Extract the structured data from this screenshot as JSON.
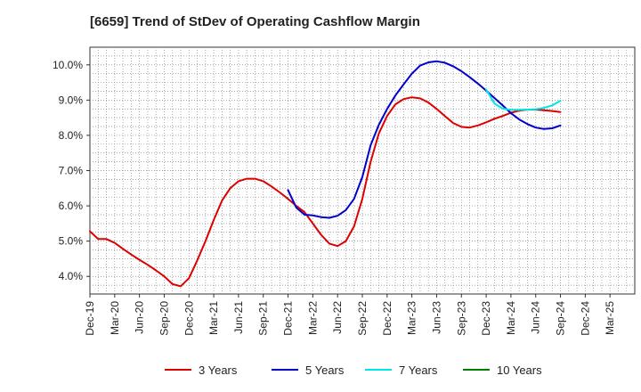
{
  "title": "[6659]  Trend of StDev of Operating Cashflow Margin",
  "chart_data": {
    "type": "line",
    "title": "[6659]  Trend of StDev of Operating Cashflow Margin",
    "xlabel": "",
    "ylabel": "",
    "x_tick_labels": [
      "Dec-19",
      "Mar-20",
      "Jun-20",
      "Sep-20",
      "Dec-20",
      "Mar-21",
      "Jun-21",
      "Sep-21",
      "Dec-21",
      "Mar-22",
      "Jun-22",
      "Sep-22",
      "Dec-22",
      "Mar-23",
      "Jun-23",
      "Sep-23",
      "Dec-23",
      "Mar-24",
      "Jun-24",
      "Sep-24",
      "Dec-24",
      "Mar-25"
    ],
    "y_tick_labels": [
      "4.0%",
      "5.0%",
      "6.0%",
      "7.0%",
      "8.0%",
      "9.0%",
      "10.0%"
    ],
    "ylim": [
      3.5,
      10.5
    ],
    "grid": true,
    "legend_position": "bottom",
    "series": [
      {
        "name": "3 Years",
        "color": "#dd0000",
        "points": [
          [
            "Dec-19",
            5.28
          ],
          [
            "Jan-20",
            5.06
          ],
          [
            "Feb-20",
            5.06
          ],
          [
            "Mar-20",
            4.95
          ],
          [
            "Apr-20",
            4.78
          ],
          [
            "May-20",
            4.62
          ],
          [
            "Jun-20",
            4.47
          ],
          [
            "Jul-20",
            4.33
          ],
          [
            "Aug-20",
            4.17
          ],
          [
            "Sep-20",
            4.0
          ],
          [
            "Oct-20",
            3.78
          ],
          [
            "Nov-20",
            3.72
          ],
          [
            "Dec-20",
            3.95
          ],
          [
            "Jan-21",
            4.45
          ],
          [
            "Feb-21",
            5.0
          ],
          [
            "Mar-21",
            5.6
          ],
          [
            "Apr-21",
            6.15
          ],
          [
            "May-21",
            6.5
          ],
          [
            "Jun-21",
            6.7
          ],
          [
            "Jul-21",
            6.77
          ],
          [
            "Aug-21",
            6.77
          ],
          [
            "Sep-21",
            6.7
          ],
          [
            "Oct-21",
            6.55
          ],
          [
            "Nov-21",
            6.38
          ],
          [
            "Dec-21",
            6.2
          ],
          [
            "Jan-22",
            6.0
          ],
          [
            "Feb-22",
            5.82
          ],
          [
            "Mar-22",
            5.5
          ],
          [
            "Apr-22",
            5.18
          ],
          [
            "May-22",
            4.93
          ],
          [
            "Jun-22",
            4.86
          ],
          [
            "Jul-22",
            5.0
          ],
          [
            "Aug-22",
            5.42
          ],
          [
            "Sep-22",
            6.2
          ],
          [
            "Oct-22",
            7.25
          ],
          [
            "Nov-22",
            8.05
          ],
          [
            "Dec-22",
            8.55
          ],
          [
            "Jan-23",
            8.88
          ],
          [
            "Feb-23",
            9.03
          ],
          [
            "Mar-23",
            9.08
          ],
          [
            "Apr-23",
            9.05
          ],
          [
            "May-23",
            8.93
          ],
          [
            "Jun-23",
            8.75
          ],
          [
            "Jul-23",
            8.55
          ],
          [
            "Aug-23",
            8.35
          ],
          [
            "Sep-23",
            8.24
          ],
          [
            "Oct-23",
            8.22
          ],
          [
            "Nov-23",
            8.28
          ],
          [
            "Dec-23",
            8.37
          ],
          [
            "Jan-24",
            8.47
          ],
          [
            "Feb-24",
            8.55
          ],
          [
            "Mar-24",
            8.64
          ],
          [
            "Apr-24",
            8.7
          ],
          [
            "May-24",
            8.73
          ],
          [
            "Jun-24",
            8.73
          ],
          [
            "Jul-24",
            8.71
          ],
          [
            "Aug-24",
            8.69
          ],
          [
            "Sep-24",
            8.66
          ]
        ]
      },
      {
        "name": "5 Years",
        "color": "#0000cc",
        "points": [
          [
            "Dec-21",
            6.45
          ],
          [
            "Jan-22",
            5.95
          ],
          [
            "Feb-22",
            5.75
          ],
          [
            "Mar-22",
            5.73
          ],
          [
            "Apr-22",
            5.68
          ],
          [
            "May-22",
            5.66
          ],
          [
            "Jun-22",
            5.72
          ],
          [
            "Jul-22",
            5.88
          ],
          [
            "Aug-22",
            6.2
          ],
          [
            "Sep-22",
            6.82
          ],
          [
            "Oct-22",
            7.72
          ],
          [
            "Nov-22",
            8.3
          ],
          [
            "Dec-22",
            8.75
          ],
          [
            "Jan-23",
            9.13
          ],
          [
            "Feb-23",
            9.45
          ],
          [
            "Mar-23",
            9.75
          ],
          [
            "Apr-23",
            9.98
          ],
          [
            "May-23",
            10.07
          ],
          [
            "Jun-23",
            10.1
          ],
          [
            "Jul-23",
            10.06
          ],
          [
            "Aug-23",
            9.96
          ],
          [
            "Sep-23",
            9.82
          ],
          [
            "Oct-23",
            9.65
          ],
          [
            "Nov-23",
            9.47
          ],
          [
            "Dec-23",
            9.27
          ],
          [
            "Jan-24",
            9.06
          ],
          [
            "Feb-24",
            8.85
          ],
          [
            "Mar-24",
            8.63
          ],
          [
            "Apr-24",
            8.45
          ],
          [
            "May-24",
            8.32
          ],
          [
            "Jun-24",
            8.22
          ],
          [
            "Jul-24",
            8.18
          ],
          [
            "Aug-24",
            8.2
          ],
          [
            "Sep-24",
            8.28
          ]
        ]
      },
      {
        "name": "7 Years",
        "color": "#00e5e5",
        "points": [
          [
            "Dec-23",
            9.3
          ],
          [
            "Jan-24",
            8.9
          ],
          [
            "Feb-24",
            8.76
          ],
          [
            "Mar-24",
            8.72
          ],
          [
            "Apr-24",
            8.72
          ],
          [
            "May-24",
            8.73
          ],
          [
            "Jun-24",
            8.74
          ],
          [
            "Jul-24",
            8.78
          ],
          [
            "Aug-24",
            8.85
          ],
          [
            "Sep-24",
            8.98
          ]
        ]
      },
      {
        "name": "10 Years",
        "color": "#008000",
        "points": []
      }
    ]
  }
}
